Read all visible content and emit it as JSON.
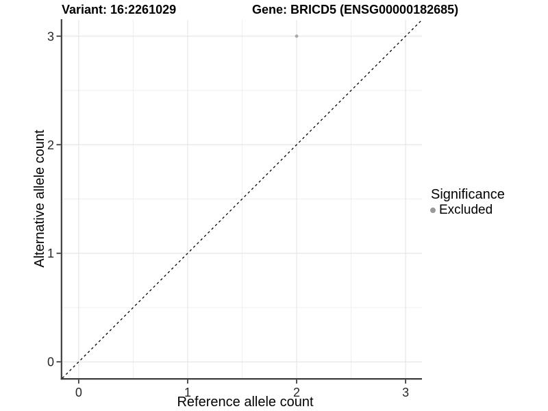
{
  "header": {
    "variant_title": "Variant: 16:2261029",
    "gene_title": "Gene: BRICD5 (ENSG00000182685)"
  },
  "chart_data": {
    "type": "scatter",
    "xlabel": "Reference allele count",
    "ylabel": "Alternative allele count",
    "xlim": [
      -0.15,
      3.15
    ],
    "ylim": [
      -0.15,
      3.15
    ],
    "x_ticks": [
      0,
      1,
      2,
      3
    ],
    "y_ticks": [
      0,
      1,
      2,
      3
    ],
    "x_minor_ticks": [
      0.5,
      1.5,
      2.5
    ],
    "y_minor_ticks": [
      0.5,
      1.5,
      2.5
    ],
    "grid": "major+minor",
    "reference_line": {
      "type": "identity",
      "slope": 1,
      "intercept": 0,
      "style": "dashed",
      "color": "#000000"
    },
    "series": [
      {
        "name": "Excluded",
        "color": "#a9a9a9",
        "points": [
          {
            "x": 2,
            "y": 3
          }
        ]
      }
    ],
    "legend": {
      "title": "Significance",
      "position": "right",
      "items": [
        {
          "label": "Excluded",
          "color": "#999999",
          "marker": "circle"
        }
      ]
    },
    "colors": {
      "grid_major": "#e6e6e6",
      "grid_minor": "#efefef",
      "axis_line": "#3d3d3d",
      "tick_label": "#262626",
      "background": "#ffffff"
    }
  }
}
